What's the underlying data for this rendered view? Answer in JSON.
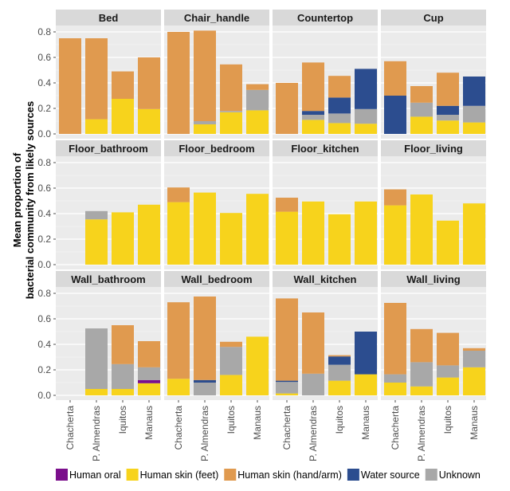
{
  "chart_data": {
    "type": "bar",
    "stacked": true,
    "facet_layout": "3 rows x 4 columns",
    "ylabel_lines": [
      "Mean proportion of",
      "bacterial community from likely sources"
    ],
    "ylim": [
      0,
      0.8
    ],
    "yticks": [
      0,
      0.2,
      0.4,
      0.6,
      0.8
    ],
    "ytick_labels": [
      "0.0",
      "0.2",
      "0.4",
      "0.6",
      "0.8"
    ],
    "categories": [
      "Chacherta",
      "P. Almendras",
      "Iquitos",
      "Manaus"
    ],
    "legend": {
      "placement": "bottom",
      "entries": [
        {
          "key": "oral",
          "label": "Human oral",
          "color": "#7b0f8c"
        },
        {
          "key": "feet",
          "label": "Human skin (feet)",
          "color": "#f7d31c"
        },
        {
          "key": "hand",
          "label": "Human skin (hand/arm)",
          "color": "#e09a4f"
        },
        {
          "key": "water",
          "label": "Water source",
          "color": "#2c4d8f"
        },
        {
          "key": "unknown",
          "label": "Unknown",
          "color": "#a8a8a8"
        }
      ]
    },
    "stack_order": [
      "feet",
      "oral",
      "unknown",
      "water",
      "hand"
    ],
    "panels": [
      {
        "title": "Bed",
        "bars": [
          {
            "hand": 0.75
          },
          {
            "feet": 0.115,
            "hand": 0.635
          },
          {
            "feet": 0.275,
            "hand": 0.215
          },
          {
            "feet": 0.195,
            "hand": 0.405
          }
        ]
      },
      {
        "title": "Chair_handle",
        "bars": [
          {
            "hand": 0.8
          },
          {
            "feet": 0.075,
            "unknown": 0.025,
            "hand": 0.71
          },
          {
            "feet": 0.17,
            "unknown": 0.01,
            "hand": 0.365
          },
          {
            "feet": 0.185,
            "unknown": 0.16,
            "hand": 0.045
          }
        ]
      },
      {
        "title": "Countertop",
        "bars": [
          {
            "hand": 0.4
          },
          {
            "feet": 0.11,
            "unknown": 0.04,
            "water": 0.03,
            "hand": 0.38
          },
          {
            "feet": 0.085,
            "unknown": 0.075,
            "water": 0.125,
            "hand": 0.17
          },
          {
            "feet": 0.08,
            "unknown": 0.115,
            "water": 0.315
          }
        ]
      },
      {
        "title": "Cup",
        "bars": [
          {
            "hand": 0.27,
            "water": 0.3
          },
          {
            "feet": 0.135,
            "unknown": 0.11,
            "hand": 0.13
          },
          {
            "feet": 0.105,
            "unknown": 0.045,
            "water": 0.07,
            "hand": 0.26
          },
          {
            "feet": 0.09,
            "unknown": 0.13,
            "water": 0.23
          }
        ]
      },
      {
        "title": "Floor_bathroom",
        "bars": [
          {},
          {
            "feet": 0.355,
            "unknown": 0.065
          },
          {
            "feet": 0.41
          },
          {
            "feet": 0.47
          }
        ]
      },
      {
        "title": "Floor_bedroom",
        "bars": [
          {
            "hand": 0.115,
            "feet": 0.49
          },
          {
            "feet": 0.565
          },
          {
            "feet": 0.405
          },
          {
            "feet": 0.555
          }
        ]
      },
      {
        "title": "Floor_kitchen",
        "bars": [
          {
            "hand": 0.11,
            "feet": 0.415
          },
          {
            "feet": 0.495
          },
          {
            "feet": 0.395
          },
          {
            "feet": 0.495
          }
        ]
      },
      {
        "title": "Floor_living",
        "bars": [
          {
            "hand": 0.125,
            "feet": 0.465
          },
          {
            "feet": 0.55
          },
          {
            "feet": 0.345
          },
          {
            "feet": 0.48
          }
        ]
      },
      {
        "title": "Wall_bathroom",
        "bars": [
          {},
          {
            "feet": 0.05,
            "unknown": 0.475
          },
          {
            "feet": 0.05,
            "unknown": 0.195,
            "hand": 0.305
          },
          {
            "feet": 0.095,
            "oral": 0.025,
            "unknown": 0.1,
            "hand": 0.205
          }
        ]
      },
      {
        "title": "Wall_bedroom",
        "bars": [
          {
            "feet": 0.13,
            "hand": 0.6
          },
          {
            "unknown": 0.1,
            "water": 0.02,
            "hand": 0.655
          },
          {
            "feet": 0.16,
            "unknown": 0.22,
            "hand": 0.04
          },
          {
            "feet": 0.46
          }
        ]
      },
      {
        "title": "Wall_kitchen",
        "bars": [
          {
            "feet": 0.015,
            "unknown": 0.09,
            "water": 0.01,
            "hand": 0.645
          },
          {
            "unknown": 0.17,
            "hand": 0.48
          },
          {
            "feet": 0.115,
            "unknown": 0.125,
            "water": 0.065,
            "hand": 0.01
          },
          {
            "feet": 0.165,
            "water": 0.335
          }
        ]
      },
      {
        "title": "Wall_living",
        "bars": [
          {
            "feet": 0.1,
            "unknown": 0.065,
            "hand": 0.56
          },
          {
            "feet": 0.07,
            "unknown": 0.19,
            "hand": 0.26
          },
          {
            "feet": 0.14,
            "unknown": 0.095,
            "hand": 0.255
          },
          {
            "feet": 0.22,
            "unknown": 0.13,
            "hand": 0.02
          }
        ]
      }
    ]
  }
}
